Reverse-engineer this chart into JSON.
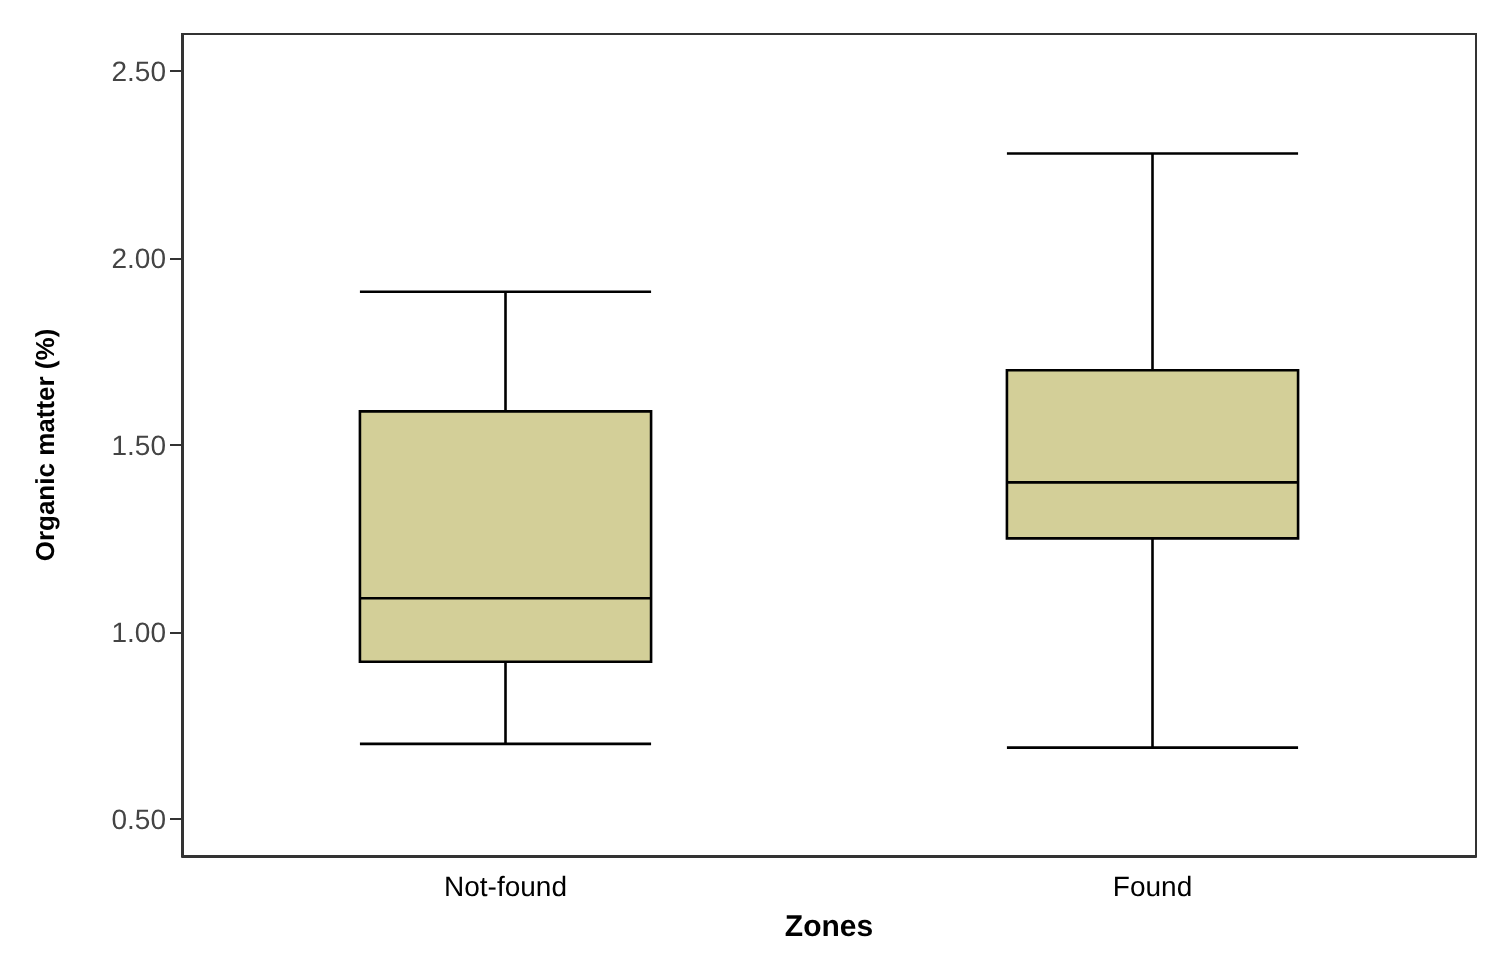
{
  "chart_data": {
    "type": "box",
    "xlabel": "Zones",
    "ylabel": "Organic matter (%)",
    "categories": [
      "Not-found",
      "Found"
    ],
    "boxes": [
      {
        "low": 0.7,
        "q1": 0.92,
        "median": 1.09,
        "q3": 1.59,
        "high": 1.91
      },
      {
        "low": 0.69,
        "q1": 1.25,
        "median": 1.4,
        "q3": 1.7,
        "high": 2.28
      }
    ],
    "color": "#d3cf98",
    "ylim": [
      0.4,
      2.6
    ],
    "yticks": [
      {
        "value": 0.5,
        "label": "0.50"
      },
      {
        "value": 1,
        "label": "1.00"
      },
      {
        "value": 1.5,
        "label": "1.50"
      },
      {
        "value": 2,
        "label": "2.00"
      },
      {
        "value": 2.5,
        "label": "2.50"
      }
    ],
    "grid": false
  }
}
